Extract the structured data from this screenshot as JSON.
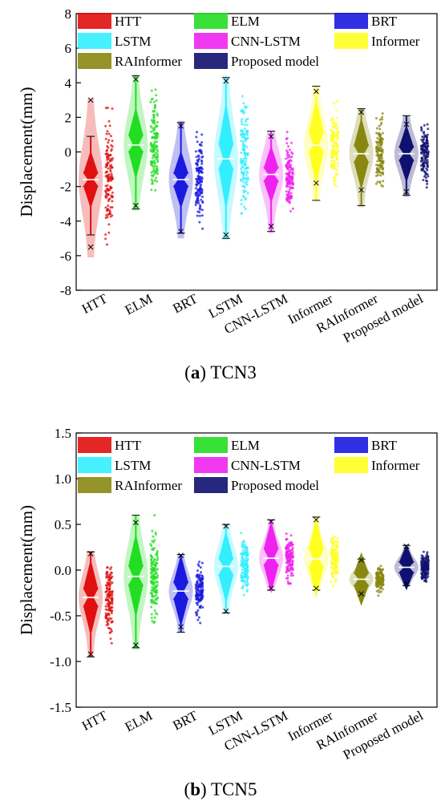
{
  "chart_data": [
    {
      "type": "violin-box",
      "panel_label": "a",
      "title": "TCN3",
      "ylabel": "Displacement(mm)",
      "xlabel": "",
      "ylim": [
        -8,
        8
      ],
      "yticks": [
        -8,
        -6,
        -4,
        -2,
        0,
        2,
        4,
        6,
        8
      ],
      "categories": [
        "HTT",
        "ELM",
        "BRT",
        "LSTM",
        "CNN-LSTM",
        "Informer",
        "RAInformer",
        "Proposed model"
      ],
      "legend": [
        "HTT",
        "ELM",
        "BRT",
        "LSTM",
        "CNN-LSTM",
        "Informer",
        "RAInformer",
        "Proposed model"
      ],
      "legend_position": "top",
      "series": [
        {
          "name": "HTT",
          "median": -1.6,
          "q1": -2.0,
          "q3": -1.2,
          "whisker_low": -4.8,
          "whisker_high": 0.9,
          "cross_low": -5.5,
          "cross_high": 3.0,
          "min": -6.1,
          "max": 3.1
        },
        {
          "name": "ELM",
          "median": 0.4,
          "q1": 0.0,
          "q3": 1.0,
          "whisker_low": -3.3,
          "whisker_high": 4.4,
          "cross_low": -3.1,
          "cross_high": 4.2,
          "min": -3.4,
          "max": 4.5
        },
        {
          "name": "BRT",
          "median": -1.6,
          "q1": -2.0,
          "q3": -1.2,
          "whisker_low": -4.7,
          "whisker_high": 1.7,
          "cross_low": -4.6,
          "cross_high": 1.5,
          "min": -5.0,
          "max": 1.8
        },
        {
          "name": "LSTM",
          "median": -0.4,
          "q1": -1.0,
          "q3": 0.5,
          "whisker_low": -5.0,
          "whisker_high": 4.3,
          "cross_low": -4.8,
          "cross_high": 4.1,
          "min": -5.1,
          "max": 4.4
        },
        {
          "name": "CNN-LSTM",
          "median": -1.3,
          "q1": -1.7,
          "q3": -0.9,
          "whisker_low": -4.6,
          "whisker_high": 1.2,
          "cross_low": -4.3,
          "cross_high": 0.9,
          "min": -4.7,
          "max": 1.2
        },
        {
          "name": "Informer",
          "median": 0.4,
          "q1": 0.0,
          "q3": 1.2,
          "whisker_low": -2.8,
          "whisker_high": 3.8,
          "cross_low": -1.8,
          "cross_high": 3.5,
          "min": -2.8,
          "max": 3.8
        },
        {
          "name": "RAInformer",
          "median": -0.1,
          "q1": -0.6,
          "q3": 0.4,
          "whisker_low": -3.1,
          "whisker_high": 2.5,
          "cross_low": -2.2,
          "cross_high": 2.3,
          "min": -3.2,
          "max": 2.5
        },
        {
          "name": "Proposed model",
          "median": -0.1,
          "q1": -0.5,
          "q3": 0.3,
          "whisker_low": -2.5,
          "whisker_high": 2.1,
          "cross_low": -2.3,
          "cross_high": 1.6,
          "min": -2.6,
          "max": 2.1
        }
      ]
    },
    {
      "type": "violin-box",
      "panel_label": "b",
      "title": "TCN5",
      "ylabel": "Displacement(mm)",
      "xlabel": "",
      "ylim": [
        -1.5,
        1.5
      ],
      "yticks": [
        -1.5,
        -1.0,
        -0.5,
        0.0,
        0.5,
        1.0,
        1.5
      ],
      "categories": [
        "HTT",
        "ELM",
        "BRT",
        "LSTM",
        "CNN-LSTM",
        "Informer",
        "RAInformer",
        "Proposed model"
      ],
      "legend": [
        "HTT",
        "ELM",
        "BRT",
        "LSTM",
        "CNN-LSTM",
        "Informer",
        "RAInformer",
        "Proposed model"
      ],
      "legend_position": "top",
      "series": [
        {
          "name": "HTT",
          "median": -0.3,
          "q1": -0.4,
          "q3": -0.2,
          "whisker_low": -0.95,
          "whisker_high": 0.2,
          "cross_low": -0.92,
          "cross_high": 0.18,
          "min": -0.95,
          "max": 0.2
        },
        {
          "name": "ELM",
          "median": -0.07,
          "q1": -0.17,
          "q3": 0.05,
          "whisker_low": -0.85,
          "whisker_high": 0.6,
          "cross_low": -0.82,
          "cross_high": 0.52,
          "min": -0.87,
          "max": 0.6
        },
        {
          "name": "BRT",
          "median": -0.23,
          "q1": -0.32,
          "q3": -0.13,
          "whisker_low": -0.68,
          "whisker_high": 0.17,
          "cross_low": -0.62,
          "cross_high": 0.16,
          "min": -0.68,
          "max": 0.17
        },
        {
          "name": "LSTM",
          "median": 0.04,
          "q1": -0.06,
          "q3": 0.13,
          "whisker_low": -0.47,
          "whisker_high": 0.5,
          "cross_low": -0.45,
          "cross_high": 0.48,
          "min": -0.47,
          "max": 0.5
        },
        {
          "name": "CNN-LSTM",
          "median": 0.13,
          "q1": 0.05,
          "q3": 0.24,
          "whisker_low": -0.22,
          "whisker_high": 0.55,
          "cross_low": -0.2,
          "cross_high": 0.53,
          "min": -0.22,
          "max": 0.55
        },
        {
          "name": "Informer",
          "median": 0.12,
          "q1": 0.03,
          "q3": 0.24,
          "whisker_low": -0.22,
          "whisker_high": 0.58,
          "cross_low": -0.2,
          "cross_high": 0.55,
          "min": -0.22,
          "max": 0.58
        },
        {
          "name": "RAInformer",
          "median": -0.1,
          "q1": -0.17,
          "q3": -0.03,
          "whisker_low": -0.28,
          "whisker_high": 0.12,
          "cross_low": -0.26,
          "cross_high": 0.11,
          "min": -0.28,
          "max": 0.12
        },
        {
          "name": "Proposed model",
          "median": 0.03,
          "q1": -0.03,
          "q3": 0.09,
          "whisker_low": -0.17,
          "whisker_high": 0.27,
          "cross_low": -0.15,
          "cross_high": 0.26,
          "min": -0.17,
          "max": 0.27
        }
      ]
    }
  ],
  "colors": {
    "HTT": "#e01010",
    "ELM": "#22dd22",
    "BRT": "#1a1adf",
    "LSTM": "#33eeff",
    "CNN-LSTM": "#ee22ee",
    "Informer": "#ffff22",
    "RAInformer": "#888811",
    "Proposed model": "#101070"
  },
  "captions": {
    "a": {
      "label": "a",
      "text": "TCN3"
    },
    "b": {
      "label": "b",
      "text": "TCN5"
    }
  }
}
